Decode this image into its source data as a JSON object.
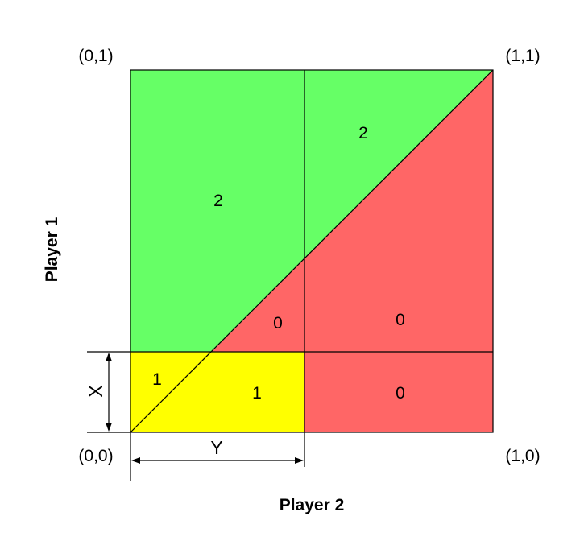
{
  "diagram": {
    "colors": {
      "green": "#66ff66",
      "red": "#ff6666",
      "yellow": "#ffff00",
      "line": "#000000"
    },
    "corners": {
      "top_left": "(0,1)",
      "top_right": "(1,1)",
      "bottom_left": "(0,0)",
      "bottom_right": "(1,0)"
    },
    "axis_titles": {
      "vertical": "Player 1",
      "horizontal": "Player 2"
    },
    "dimensions": {
      "x": "X",
      "y": "Y"
    },
    "regions": {
      "green_left": "2",
      "green_right": "2",
      "red_mid": "0",
      "red_right": "0",
      "yellow_left": "1",
      "yellow_mid": "1",
      "red_bottom": "0"
    }
  }
}
